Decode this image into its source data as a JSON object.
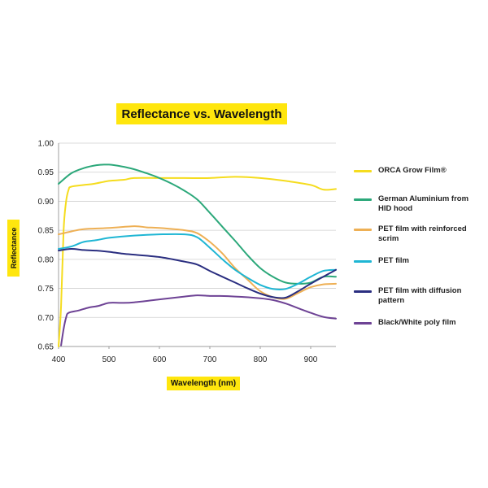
{
  "chart_data": {
    "type": "line",
    "title": "Reflectance vs. Wavelength",
    "xlabel": "Wavelength (nm)",
    "ylabel": "Reflectance",
    "xlim": [
      400,
      950
    ],
    "ylim": [
      0.65,
      1.0
    ],
    "x_ticks": [
      400,
      500,
      600,
      700,
      800,
      900
    ],
    "y_ticks": [
      "0.65",
      "0.70",
      "0.75",
      "0.80",
      "0.85",
      "0.90",
      "0.95",
      "1.00"
    ],
    "grid": "horizontal",
    "legend_position": "right",
    "series": [
      {
        "name": "ORCA Grow Film®",
        "color": "#f5dc1e",
        "points": [
          [
            400,
            0.65
          ],
          [
            405,
            0.72
          ],
          [
            410,
            0.85
          ],
          [
            415,
            0.9
          ],
          [
            420,
            0.92
          ],
          [
            425,
            0.925
          ],
          [
            450,
            0.928
          ],
          [
            470,
            0.93
          ],
          [
            500,
            0.935
          ],
          [
            530,
            0.937
          ],
          [
            550,
            0.94
          ],
          [
            600,
            0.94
          ],
          [
            650,
            0.94
          ],
          [
            700,
            0.94
          ],
          [
            750,
            0.942
          ],
          [
            800,
            0.94
          ],
          [
            850,
            0.935
          ],
          [
            900,
            0.928
          ],
          [
            925,
            0.92
          ],
          [
            950,
            0.921
          ]
        ]
      },
      {
        "name": "German Aluminium from HID hood",
        "color": "#2ca87a",
        "points": [
          [
            400,
            0.93
          ],
          [
            425,
            0.948
          ],
          [
            450,
            0.957
          ],
          [
            475,
            0.962
          ],
          [
            500,
            0.963
          ],
          [
            525,
            0.96
          ],
          [
            550,
            0.955
          ],
          [
            575,
            0.948
          ],
          [
            600,
            0.94
          ],
          [
            625,
            0.93
          ],
          [
            650,
            0.918
          ],
          [
            675,
            0.903
          ],
          [
            700,
            0.88
          ],
          [
            725,
            0.856
          ],
          [
            750,
            0.832
          ],
          [
            775,
            0.807
          ],
          [
            800,
            0.785
          ],
          [
            825,
            0.77
          ],
          [
            850,
            0.76
          ],
          [
            875,
            0.758
          ],
          [
            900,
            0.76
          ],
          [
            925,
            0.77
          ],
          [
            950,
            0.77
          ]
        ]
      },
      {
        "name": "PET film with reinforced scrim",
        "color": "#eeb055",
        "points": [
          [
            400,
            0.843
          ],
          [
            425,
            0.848
          ],
          [
            450,
            0.852
          ],
          [
            500,
            0.854
          ],
          [
            550,
            0.857
          ],
          [
            575,
            0.855
          ],
          [
            600,
            0.854
          ],
          [
            650,
            0.85
          ],
          [
            675,
            0.845
          ],
          [
            700,
            0.83
          ],
          [
            725,
            0.81
          ],
          [
            750,
            0.785
          ],
          [
            775,
            0.765
          ],
          [
            800,
            0.745
          ],
          [
            825,
            0.735
          ],
          [
            850,
            0.732
          ],
          [
            875,
            0.742
          ],
          [
            900,
            0.752
          ],
          [
            925,
            0.757
          ],
          [
            950,
            0.758
          ]
        ]
      },
      {
        "name": "PET film",
        "color": "#1fb6d4",
        "points": [
          [
            400,
            0.818
          ],
          [
            425,
            0.822
          ],
          [
            450,
            0.83
          ],
          [
            475,
            0.833
          ],
          [
            500,
            0.837
          ],
          [
            550,
            0.841
          ],
          [
            600,
            0.843
          ],
          [
            650,
            0.843
          ],
          [
            675,
            0.838
          ],
          [
            700,
            0.82
          ],
          [
            725,
            0.8
          ],
          [
            750,
            0.782
          ],
          [
            775,
            0.768
          ],
          [
            800,
            0.756
          ],
          [
            825,
            0.749
          ],
          [
            850,
            0.749
          ],
          [
            875,
            0.758
          ],
          [
            900,
            0.77
          ],
          [
            925,
            0.78
          ],
          [
            950,
            0.782
          ]
        ]
      },
      {
        "name": "PET film with diffusion pattern",
        "color": "#2a2e80",
        "points": [
          [
            400,
            0.815
          ],
          [
            425,
            0.818
          ],
          [
            450,
            0.816
          ],
          [
            475,
            0.815
          ],
          [
            500,
            0.813
          ],
          [
            525,
            0.81
          ],
          [
            550,
            0.808
          ],
          [
            600,
            0.804
          ],
          [
            650,
            0.796
          ],
          [
            675,
            0.791
          ],
          [
            700,
            0.78
          ],
          [
            725,
            0.77
          ],
          [
            750,
            0.76
          ],
          [
            775,
            0.75
          ],
          [
            800,
            0.741
          ],
          [
            825,
            0.735
          ],
          [
            850,
            0.734
          ],
          [
            875,
            0.745
          ],
          [
            900,
            0.758
          ],
          [
            925,
            0.77
          ],
          [
            950,
            0.782
          ]
        ]
      },
      {
        "name": "Black/White poly film",
        "color": "#6e4395",
        "points": [
          [
            405,
            0.652
          ],
          [
            410,
            0.68
          ],
          [
            415,
            0.7
          ],
          [
            420,
            0.708
          ],
          [
            440,
            0.712
          ],
          [
            460,
            0.717
          ],
          [
            480,
            0.72
          ],
          [
            500,
            0.725
          ],
          [
            525,
            0.725
          ],
          [
            550,
            0.726
          ],
          [
            600,
            0.731
          ],
          [
            650,
            0.736
          ],
          [
            675,
            0.738
          ],
          [
            700,
            0.737
          ],
          [
            720,
            0.737
          ],
          [
            750,
            0.736
          ],
          [
            800,
            0.733
          ],
          [
            825,
            0.73
          ],
          [
            850,
            0.724
          ],
          [
            875,
            0.716
          ],
          [
            900,
            0.708
          ],
          [
            925,
            0.701
          ],
          [
            950,
            0.698
          ]
        ]
      }
    ]
  }
}
